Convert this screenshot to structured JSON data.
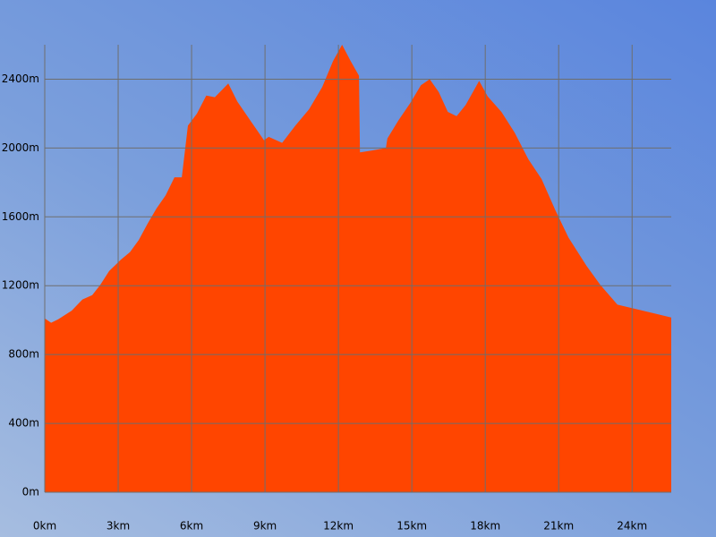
{
  "chart_data": {
    "type": "area",
    "x": [
      0,
      0.26,
      0.55,
      1.1,
      1.54,
      1.94,
      2.27,
      2.63,
      3.1,
      3.48,
      3.84,
      4.2,
      4.57,
      4.94,
      5.3,
      5.6,
      5.85,
      6.22,
      6.6,
      6.95,
      7.5,
      7.87,
      8.4,
      8.96,
      9.15,
      9.7,
      10.24,
      10.8,
      11.34,
      11.78,
      12.15,
      12.5,
      12.84,
      12.88,
      13.35,
      13.94,
      14.0,
      14.45,
      14.93,
      15.37,
      15.73,
      16.1,
      16.47,
      16.83,
      17.2,
      17.75,
      18.1,
      18.66,
      19.2,
      19.76,
      20.3,
      20.86,
      21.4,
      22.14,
      22.7,
      23.4,
      24.15,
      24.88,
      25.6
    ],
    "values": [
      1010,
      985,
      1005,
      1055,
      1120,
      1145,
      1205,
      1285,
      1350,
      1395,
      1465,
      1560,
      1650,
      1725,
      1830,
      1830,
      2130,
      2200,
      2305,
      2295,
      2375,
      2270,
      2160,
      2045,
      2065,
      2030,
      2130,
      2225,
      2355,
      2505,
      2600,
      2505,
      2420,
      1975,
      1985,
      2000,
      2055,
      2160,
      2260,
      2365,
      2400,
      2325,
      2210,
      2185,
      2250,
      2390,
      2300,
      2210,
      2090,
      1935,
      1820,
      1640,
      1480,
      1315,
      1205,
      1090,
      1065,
      1040,
      1015
    ],
    "color": "#ff4500",
    "xlim": [
      0,
      25.6
    ],
    "ylim": [
      0,
      2600
    ],
    "xticks": [
      {
        "value": 0,
        "label": "0km"
      },
      {
        "value": 3,
        "label": "3km"
      },
      {
        "value": 6,
        "label": "6km"
      },
      {
        "value": 9,
        "label": "9km"
      },
      {
        "value": 12,
        "label": "12km"
      },
      {
        "value": 15,
        "label": "15km"
      },
      {
        "value": 18,
        "label": "18km"
      },
      {
        "value": 21,
        "label": "21km"
      },
      {
        "value": 24,
        "label": "24km"
      }
    ],
    "yticks": [
      {
        "value": 0,
        "label": "0m"
      },
      {
        "value": 400,
        "label": "400m"
      },
      {
        "value": 800,
        "label": "800m"
      },
      {
        "value": 1200,
        "label": "1200m"
      },
      {
        "value": 1600,
        "label": "1600m"
      },
      {
        "value": 2000,
        "label": "2000m"
      },
      {
        "value": 2400,
        "label": "2400m"
      }
    ],
    "grid": true
  }
}
